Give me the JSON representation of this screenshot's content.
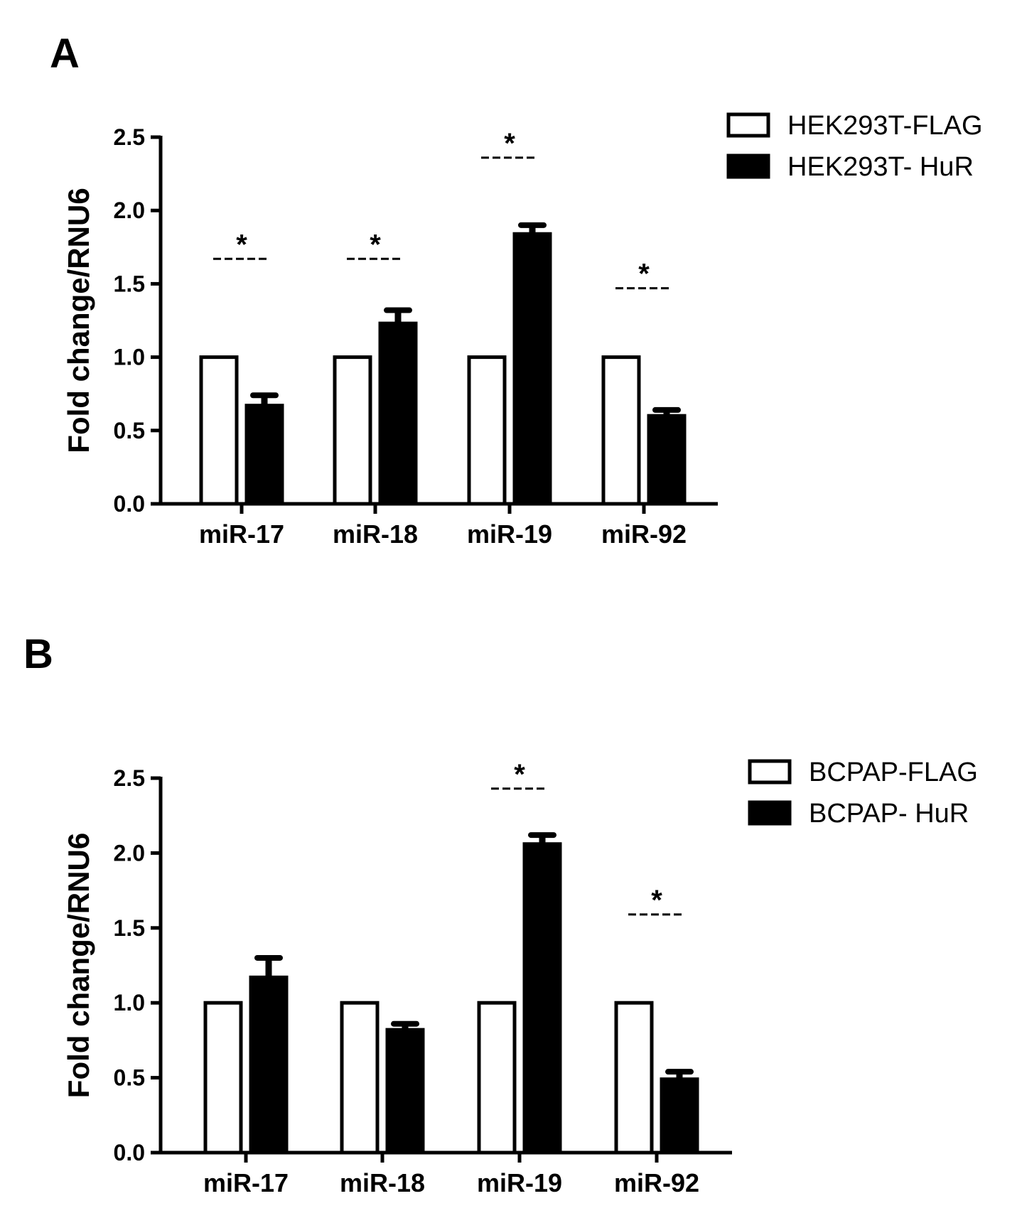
{
  "chart_data": [
    {
      "panel": "A",
      "type": "bar",
      "ylabel": "Fold change/RNU6",
      "ylim": [
        0,
        2.5
      ],
      "yticks": [
        "0.0",
        "0.5",
        "1.0",
        "1.5",
        "2.0",
        "2.5"
      ],
      "categories": [
        "miR-17",
        "miR-18",
        "miR-19",
        "miR-92"
      ],
      "legend_position": "top-right",
      "series": [
        {
          "name": "HEK293T-FLAG",
          "values": [
            1.0,
            1.0,
            1.0,
            1.0
          ],
          "errors": [
            0,
            0,
            0,
            0
          ],
          "color": "#ffffff"
        },
        {
          "name": "HEK293T- HuR",
          "values": [
            0.67,
            1.23,
            1.84,
            0.6
          ],
          "errors": [
            0.07,
            0.09,
            0.06,
            0.04
          ],
          "color": "#000000"
        }
      ],
      "significance": [
        {
          "category": "miR-17",
          "label": "*",
          "y": 1.67
        },
        {
          "category": "miR-18",
          "label": "*",
          "y": 1.67
        },
        {
          "category": "miR-19",
          "label": "*",
          "y": 2.36
        },
        {
          "category": "miR-92",
          "label": "*",
          "y": 1.47
        }
      ]
    },
    {
      "panel": "B",
      "type": "bar",
      "ylabel": "Fold change/RNU6",
      "ylim": [
        0,
        2.5
      ],
      "yticks": [
        "0.0",
        "0.5",
        "1.0",
        "1.5",
        "2.0",
        "2.5"
      ],
      "categories": [
        "miR-17",
        "miR-18",
        "miR-19",
        "miR-92"
      ],
      "legend_position": "top-right",
      "series": [
        {
          "name": "BCPAP-FLAG",
          "values": [
            1.0,
            1.0,
            1.0,
            1.0
          ],
          "errors": [
            0,
            0,
            0,
            0
          ],
          "color": "#ffffff"
        },
        {
          "name": "BCPAP- HuR",
          "values": [
            1.17,
            0.82,
            2.06,
            0.49
          ],
          "errors": [
            0.13,
            0.04,
            0.06,
            0.05
          ],
          "color": "#000000"
        }
      ],
      "significance": [
        {
          "category": "miR-19",
          "label": "*",
          "y": 2.43
        },
        {
          "category": "miR-92",
          "label": "*",
          "y": 1.59
        }
      ]
    }
  ]
}
